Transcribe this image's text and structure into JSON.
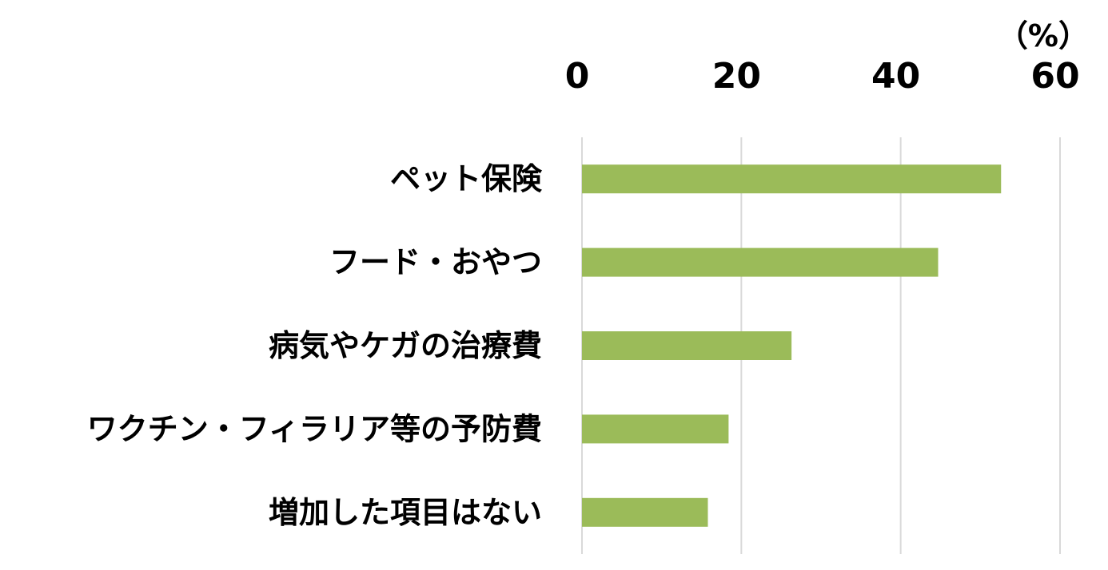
{
  "chart_data": {
    "type": "bar",
    "orientation": "horizontal",
    "unit_label": "（%）",
    "categories": [
      "ペット保険",
      "フード・おやつ",
      "病気やケガの治療費",
      "ワクチン・フィラリア等の予防費",
      "増加した項目はない"
    ],
    "values": [
      52.6,
      44.7,
      26.3,
      18.4,
      15.8
    ],
    "xlim": [
      0,
      60
    ],
    "xticks": [
      0,
      20,
      40,
      60
    ],
    "x_axis_position": "top",
    "grid": true,
    "legend": "none",
    "bar_color": "#9bbb59",
    "grid_color": "#d9d9d9"
  }
}
